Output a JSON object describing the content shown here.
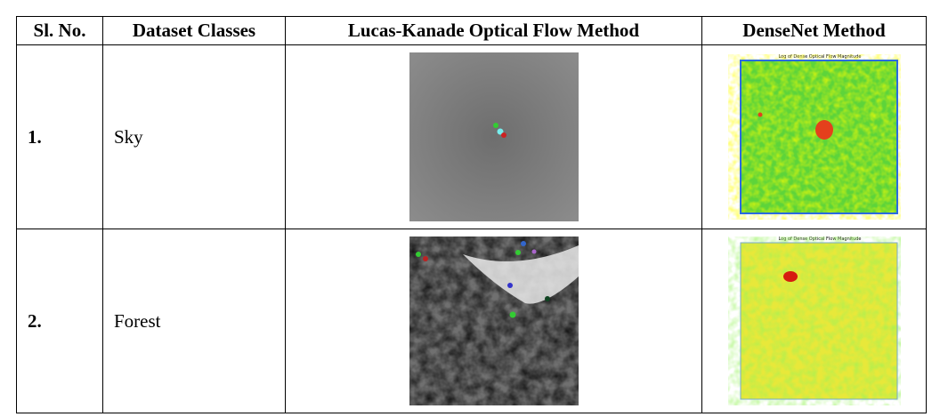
{
  "table": {
    "header": [
      "Sl. No.",
      "Dataset Classes",
      "Lucas-Kanade Optical Flow Method",
      "DenseNet Method"
    ],
    "rows": [
      {
        "number": "1.",
        "class": "Sky",
        "densenet_plot_title": "Log of Dense Optical Flow Magnitude"
      },
      {
        "number": "2.",
        "class": "Forest",
        "densenet_plot_title": "Log of Dense Optical Flow Magnitude"
      }
    ]
  }
}
